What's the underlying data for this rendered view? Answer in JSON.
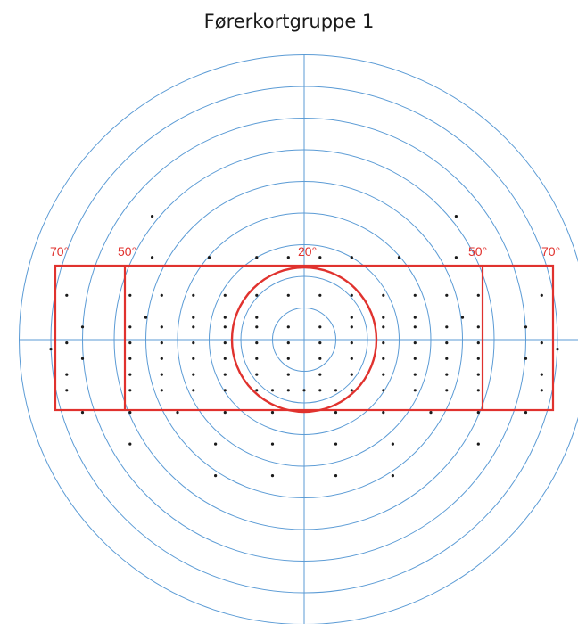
{
  "title": "Førerkortgruppe 1",
  "labels": {
    "left_70": "70°",
    "left_50": "50°",
    "center_20": "20°",
    "right_50": "50°",
    "right_70": "70°"
  },
  "colors": {
    "grid": "#5b9bd5",
    "boundary": "#e0322e",
    "dot": "#1a1a1a"
  },
  "chart_data": {
    "type": "scatter",
    "title": "Førerkortgruppe 1",
    "rings_deg": [
      10,
      20,
      30,
      40,
      50,
      60,
      70,
      80,
      90
    ],
    "zone_labels": [
      "70°",
      "50°",
      "20°",
      "50°",
      "70°"
    ],
    "test_points_deg": [
      [
        -48,
        39
      ],
      [
        48,
        39
      ],
      [
        -48,
        26
      ],
      [
        -30,
        26
      ],
      [
        -15,
        26
      ],
      [
        -5,
        26
      ],
      [
        5,
        26
      ],
      [
        15,
        26
      ],
      [
        30,
        26
      ],
      [
        48,
        26
      ],
      [
        -75,
        14
      ],
      [
        -55,
        14
      ],
      [
        -45,
        14
      ],
      [
        -35,
        14
      ],
      [
        -25,
        14
      ],
      [
        -15,
        14
      ],
      [
        -5,
        14
      ],
      [
        5,
        14
      ],
      [
        15,
        14
      ],
      [
        25,
        14
      ],
      [
        35,
        14
      ],
      [
        45,
        14
      ],
      [
        55,
        14
      ],
      [
        75,
        14
      ],
      [
        -50,
        7
      ],
      [
        -35,
        7
      ],
      [
        -25,
        7
      ],
      [
        -15,
        7
      ],
      [
        15,
        7
      ],
      [
        25,
        7
      ],
      [
        35,
        7
      ],
      [
        50,
        7
      ],
      [
        -70,
        4
      ],
      [
        -55,
        4
      ],
      [
        -45,
        4
      ],
      [
        -35,
        4
      ],
      [
        -25,
        4
      ],
      [
        -15,
        4
      ],
      [
        -5,
        4
      ],
      [
        5,
        4
      ],
      [
        15,
        4
      ],
      [
        25,
        4
      ],
      [
        35,
        4
      ],
      [
        45,
        4
      ],
      [
        55,
        4
      ],
      [
        70,
        4
      ],
      [
        -75,
        -1
      ],
      [
        -55,
        -1
      ],
      [
        -45,
        -1
      ],
      [
        -35,
        -1
      ],
      [
        -25,
        -1
      ],
      [
        -15,
        -1
      ],
      [
        -5,
        -1
      ],
      [
        5,
        -1
      ],
      [
        15,
        -1
      ],
      [
        25,
        -1
      ],
      [
        35,
        -1
      ],
      [
        45,
        -1
      ],
      [
        55,
        -1
      ],
      [
        75,
        -1
      ],
      [
        -80,
        -3
      ],
      [
        80,
        -3
      ],
      [
        -70,
        -6
      ],
      [
        -55,
        -6
      ],
      [
        -45,
        -6
      ],
      [
        -35,
        -6
      ],
      [
        -25,
        -6
      ],
      [
        -15,
        -6
      ],
      [
        -5,
        -6
      ],
      [
        5,
        -6
      ],
      [
        15,
        -6
      ],
      [
        25,
        -6
      ],
      [
        35,
        -6
      ],
      [
        45,
        -6
      ],
      [
        55,
        -6
      ],
      [
        70,
        -6
      ],
      [
        -75,
        -11
      ],
      [
        -55,
        -11
      ],
      [
        -45,
        -11
      ],
      [
        -35,
        -11
      ],
      [
        -25,
        -11
      ],
      [
        -15,
        -11
      ],
      [
        -5,
        -11
      ],
      [
        5,
        -11
      ],
      [
        15,
        -11
      ],
      [
        25,
        -11
      ],
      [
        35,
        -11
      ],
      [
        45,
        -11
      ],
      [
        55,
        -11
      ],
      [
        75,
        -11
      ],
      [
        -75,
        -16
      ],
      [
        -55,
        -16
      ],
      [
        -45,
        -16
      ],
      [
        -35,
        -16
      ],
      [
        -25,
        -16
      ],
      [
        -15,
        -16
      ],
      [
        -10,
        -16
      ],
      [
        -5,
        -16
      ],
      [
        0,
        -16
      ],
      [
        5,
        -16
      ],
      [
        10,
        -16
      ],
      [
        15,
        -16
      ],
      [
        25,
        -16
      ],
      [
        35,
        -16
      ],
      [
        45,
        -16
      ],
      [
        55,
        -16
      ],
      [
        75,
        -16
      ],
      [
        -70,
        -23
      ],
      [
        -55,
        -23
      ],
      [
        -40,
        -23
      ],
      [
        -25,
        -23
      ],
      [
        -10,
        -23
      ],
      [
        10,
        -23
      ],
      [
        25,
        -23
      ],
      [
        40,
        -23
      ],
      [
        55,
        -23
      ],
      [
        70,
        -23
      ],
      [
        -55,
        -33
      ],
      [
        -28,
        -33
      ],
      [
        -10,
        -33
      ],
      [
        10,
        -33
      ],
      [
        28,
        -33
      ],
      [
        55,
        -33
      ],
      [
        -28,
        -43
      ],
      [
        -10,
        -43
      ],
      [
        10,
        -43
      ],
      [
        28,
        -43
      ]
    ]
  }
}
